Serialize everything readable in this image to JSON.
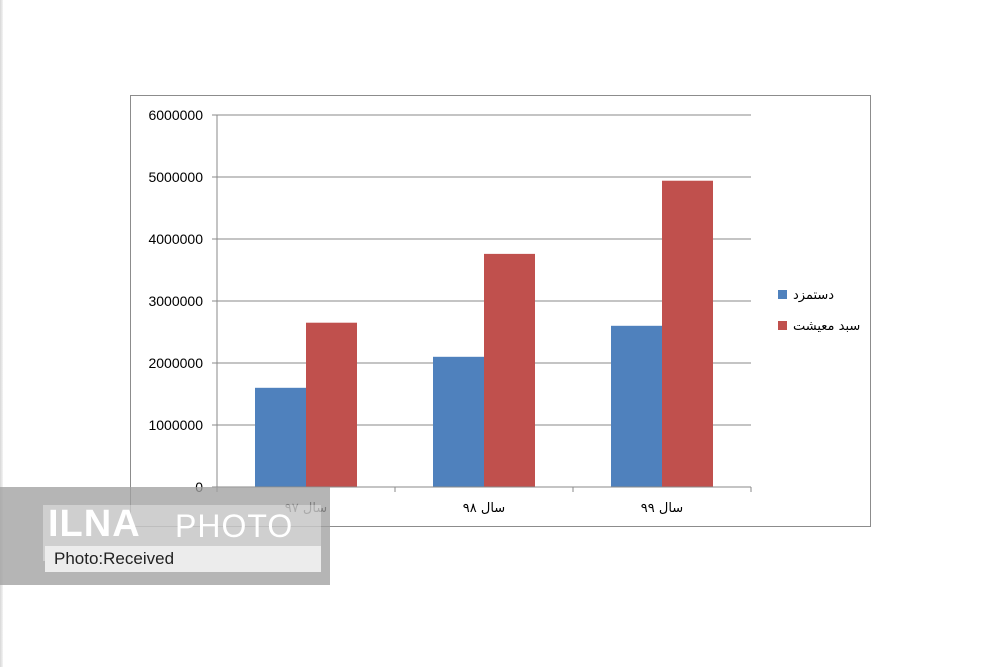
{
  "chart_data": {
    "type": "bar",
    "title": "",
    "xlabel": "",
    "ylabel": "",
    "categories": [
      "سال ۹۷",
      "سال ۹۸",
      "سال ۹۹"
    ],
    "series": [
      {
        "name": "دستمزد",
        "values": [
          1600000,
          2100000,
          2600000
        ],
        "color": "#4F81BD"
      },
      {
        "name": "سبد معیشت",
        "values": [
          2650000,
          3760000,
          4940000
        ],
        "color": "#C0504D"
      }
    ],
    "ylim": [
      0,
      6000000
    ],
    "yticks": [
      0,
      1000000,
      2000000,
      3000000,
      4000000,
      5000000,
      6000000
    ],
    "ytick_labels": [
      "0",
      "1000000",
      "2000000",
      "3000000",
      "4000000",
      "5000000",
      "6000000"
    ],
    "grid": true,
    "legend_position": "right"
  },
  "watermark": {
    "logo": "ILNA",
    "logo_suffix": "PHOTO",
    "credit": "Photo:Received"
  }
}
